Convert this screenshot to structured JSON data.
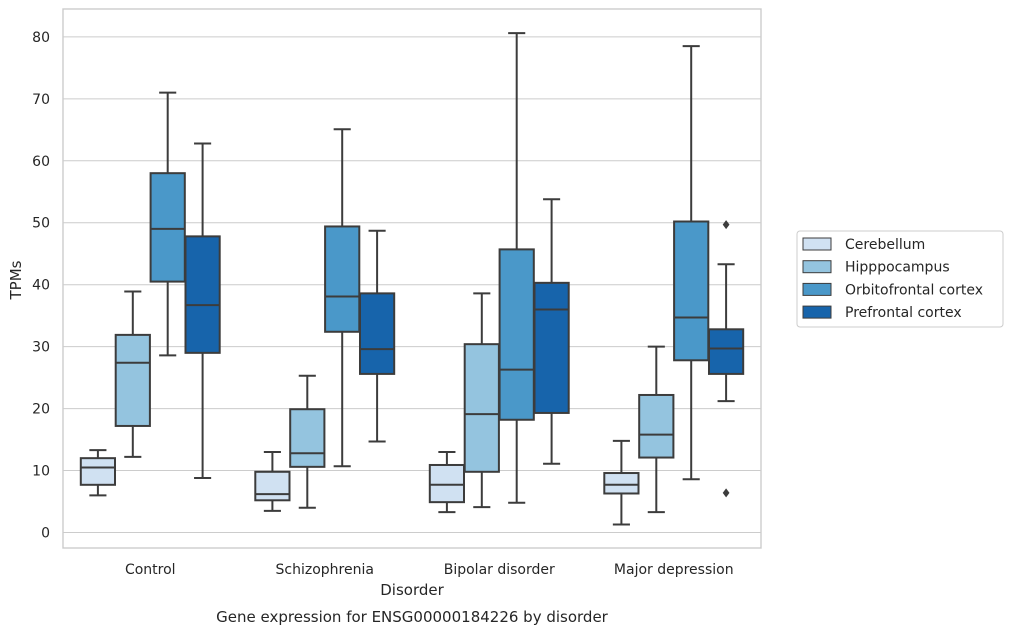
{
  "chart_data": {
    "type": "box",
    "caption": "Gene expression for ENSG00000184226 by disorder",
    "xlabel": "Disorder",
    "ylabel": "TPMs",
    "ylim": [
      -2.5,
      84.5
    ],
    "yticks": [
      0,
      10,
      20,
      30,
      40,
      50,
      60,
      70,
      80
    ],
    "grid": true,
    "legend_position": "right",
    "categories": [
      "Control",
      "Schizophrenia",
      "Bipolar disorder",
      "Major depression"
    ],
    "series": [
      {
        "name": "Cerebellum",
        "color": "#d0e1f2",
        "boxes": [
          {
            "min": 6.0,
            "q1": 7.7,
            "median": 10.5,
            "q3": 12.0,
            "max": 13.3,
            "outliers": []
          },
          {
            "min": 3.5,
            "q1": 5.2,
            "median": 6.2,
            "q3": 9.8,
            "max": 13.0,
            "outliers": []
          },
          {
            "min": 3.3,
            "q1": 4.9,
            "median": 7.7,
            "q3": 10.9,
            "max": 13.0,
            "outliers": []
          },
          {
            "min": 1.3,
            "q1": 6.3,
            "median": 7.7,
            "q3": 9.6,
            "max": 14.8,
            "outliers": []
          }
        ]
      },
      {
        "name": "Hipppocampus",
        "color": "#94c4df",
        "boxes": [
          {
            "min": 12.2,
            "q1": 17.2,
            "median": 27.4,
            "q3": 31.9,
            "max": 38.9,
            "outliers": []
          },
          {
            "min": 4.0,
            "q1": 10.6,
            "median": 12.8,
            "q3": 19.9,
            "max": 25.3,
            "outliers": []
          },
          {
            "min": 4.1,
            "q1": 9.8,
            "median": 19.1,
            "q3": 30.4,
            "max": 38.6,
            "outliers": []
          },
          {
            "min": 3.3,
            "q1": 12.1,
            "median": 15.8,
            "q3": 22.2,
            "max": 30.0,
            "outliers": []
          }
        ]
      },
      {
        "name": "Orbitofrontal cortex",
        "color": "#4a98c9",
        "boxes": [
          {
            "min": 28.6,
            "q1": 40.5,
            "median": 49.0,
            "q3": 58.0,
            "max": 71.0,
            "outliers": []
          },
          {
            "min": 10.7,
            "q1": 32.4,
            "median": 38.1,
            "q3": 49.4,
            "max": 65.1,
            "outliers": []
          },
          {
            "min": 4.8,
            "q1": 18.2,
            "median": 26.3,
            "q3": 45.7,
            "max": 80.6,
            "outliers": []
          },
          {
            "min": 8.6,
            "q1": 27.8,
            "median": 34.7,
            "q3": 50.2,
            "max": 78.5,
            "outliers": []
          }
        ]
      },
      {
        "name": "Prefrontal cortex",
        "color": "#1764ab",
        "boxes": [
          {
            "min": 8.8,
            "q1": 29.0,
            "median": 36.7,
            "q3": 47.8,
            "max": 62.8,
            "outliers": []
          },
          {
            "min": 14.7,
            "q1": 25.6,
            "median": 29.6,
            "q3": 38.6,
            "max": 48.7,
            "outliers": []
          },
          {
            "min": 11.1,
            "q1": 19.3,
            "median": 36.0,
            "q3": 40.3,
            "max": 53.8,
            "outliers": []
          },
          {
            "min": 21.2,
            "q1": 25.6,
            "median": 29.7,
            "q3": 32.8,
            "max": 43.3,
            "outliers": [
              49.7,
              6.4
            ]
          }
        ]
      }
    ]
  }
}
